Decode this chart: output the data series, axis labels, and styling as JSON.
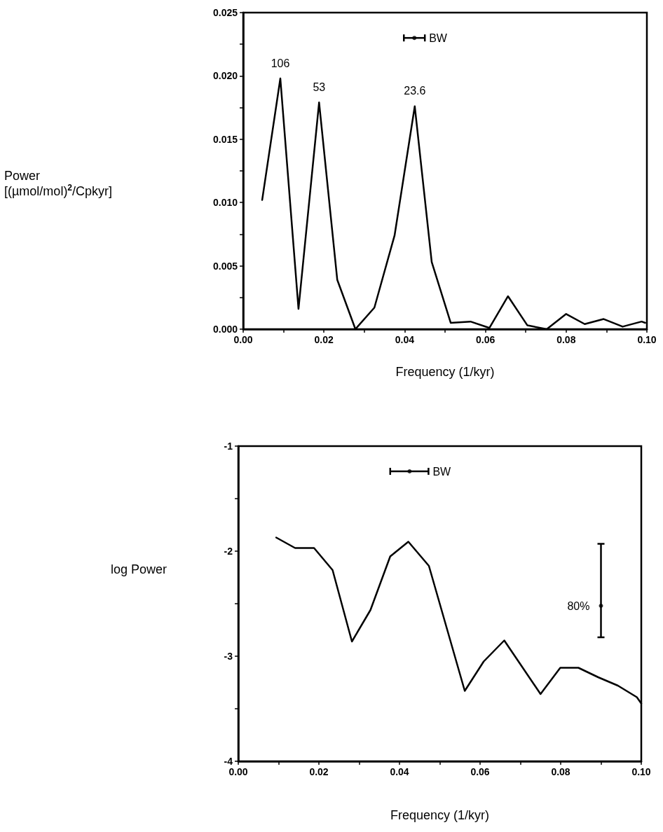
{
  "chart_data": [
    {
      "type": "line",
      "xlabel": "Frequency (1/kyr)",
      "ylabel": "Power\n[(µmol/mol)$^{2}$/Cpkyr]",
      "series": [
        {
          "color": "#000000",
          "x": [
            0.0047,
            0.0092,
            0.0137,
            0.0188,
            0.0233,
            0.0278,
            0.0325,
            0.0375,
            0.0425,
            0.0467,
            0.0514,
            0.0563,
            0.061,
            0.0656,
            0.0704,
            0.0752,
            0.08,
            0.0846,
            0.0893,
            0.094,
            0.0987,
            0.0996
          ],
          "values": [
            0.0102,
            0.0198,
            0.0016,
            0.0179,
            0.0039,
            0.0,
            0.0017,
            0.0074,
            0.0176,
            0.0053,
            0.0005,
            0.0006,
            0.0001,
            0.0026,
            0.0003,
            0.0,
            0.0012,
            0.0004,
            0.0008,
            0.0002,
            0.0006,
            0.0005
          ]
        },
        {
          "type": "scatter",
          "color": "#000000",
          "x": [
            0.0424
          ],
          "values": [
            0.023
          ],
          "xerrors": [
            [
              0.0398,
              0.045
            ]
          ],
          "marker": "circle"
        }
      ],
      "annotations": [
        {
          "text": "106",
          "x": 0.0092,
          "y": 0.0198
        },
        {
          "text": "53",
          "x": 0.0188,
          "y": 0.0179
        },
        {
          "text": "23.6",
          "x": 0.0425,
          "y": 0.0176
        },
        {
          "text": "BW",
          "x": 0.045,
          "y": 0.023
        }
      ],
      "marker": "none",
      "line_style": "solid",
      "grid": false,
      "xlim": [
        0,
        0.1
      ],
      "xticks": [
        {
          "value": 0,
          "label": "0.00"
        },
        {
          "value": 0.01,
          "label": null
        },
        {
          "value": 0.02,
          "label": "0.02"
        },
        {
          "value": 0.03,
          "label": null
        },
        {
          "value": 0.04,
          "label": "0.04"
        },
        {
          "value": 0.05,
          "label": null
        },
        {
          "value": 0.06,
          "label": "0.06"
        },
        {
          "value": 0.07,
          "label": null
        },
        {
          "value": 0.08,
          "label": "0.08"
        },
        {
          "value": 0.09,
          "label": null
        },
        {
          "value": 0.1,
          "label": "0.10"
        }
      ],
      "ylim": [
        0,
        0.025
      ],
      "yticks": [
        {
          "value": 0,
          "label": "0.000"
        },
        {
          "value": 0.0025,
          "label": null
        },
        {
          "value": 0.005,
          "label": "0.005"
        },
        {
          "value": 0.0075,
          "label": null
        },
        {
          "value": 0.01,
          "label": "0.010"
        },
        {
          "value": 0.0125,
          "label": null
        },
        {
          "value": 0.015,
          "label": "0.015"
        },
        {
          "value": 0.0175,
          "label": null
        },
        {
          "value": 0.02,
          "label": "0.020"
        },
        {
          "value": 0.0225,
          "label": null
        },
        {
          "value": 0.025,
          "label": "0.025"
        }
      ]
    },
    {
      "type": "line",
      "xlabel": "Frequency (1/kyr)",
      "ylabel": "log Power",
      "series": [
        {
          "color": "#000000",
          "x": [
            0.0094,
            0.0141,
            0.0188,
            0.0234,
            0.0282,
            0.0328,
            0.0377,
            0.0422,
            0.0473,
            0.0562,
            0.0609,
            0.066,
            0.075,
            0.0799,
            0.0844,
            0.0893,
            0.0942,
            0.0989,
            0.1
          ],
          "values": [
            -1.87,
            -1.97,
            -1.97,
            -2.18,
            -2.86,
            -2.56,
            -2.05,
            -1.91,
            -2.14,
            -3.33,
            -3.05,
            -2.85,
            -3.36,
            -3.11,
            -3.11,
            -3.2,
            -3.28,
            -3.39,
            -3.45
          ]
        },
        {
          "type": "scatter",
          "color": "#000000",
          "x": [
            0.0425
          ],
          "values": [
            -1.24
          ],
          "xerrors": [
            [
              0.0377,
              0.0472
            ]
          ],
          "marker": "circle"
        },
        {
          "type": "scatter",
          "color": "#000000",
          "x": [
            0.09
          ],
          "values": [
            -2.52
          ],
          "errors": [
            [
              -2.82,
              -1.93
            ]
          ],
          "marker": "circle"
        }
      ],
      "annotations": [
        {
          "text": "BW",
          "x": 0.0472,
          "y": -1.24
        },
        {
          "text": "80%",
          "x": 0.09,
          "y": -2.52
        }
      ],
      "marker": "none",
      "line_style": "solid",
      "grid": false,
      "xlim": [
        0,
        0.1
      ],
      "xticks": [
        {
          "value": 0,
          "label": "0.00"
        },
        {
          "value": 0.01,
          "label": null
        },
        {
          "value": 0.02,
          "label": "0.02"
        },
        {
          "value": 0.03,
          "label": null
        },
        {
          "value": 0.04,
          "label": "0.04"
        },
        {
          "value": 0.05,
          "label": null
        },
        {
          "value": 0.06,
          "label": "0.06"
        },
        {
          "value": 0.07,
          "label": null
        },
        {
          "value": 0.08,
          "label": "0.08"
        },
        {
          "value": 0.09,
          "label": null
        },
        {
          "value": 0.1,
          "label": "0.10"
        }
      ],
      "ylim": [
        -4,
        -1
      ],
      "yticks": [
        -4,
        {
          "value": -3.5,
          "label": null
        },
        -3,
        {
          "value": -2.5,
          "label": null
        },
        -2,
        {
          "value": -1.5,
          "label": null
        },
        -1
      ]
    }
  ]
}
